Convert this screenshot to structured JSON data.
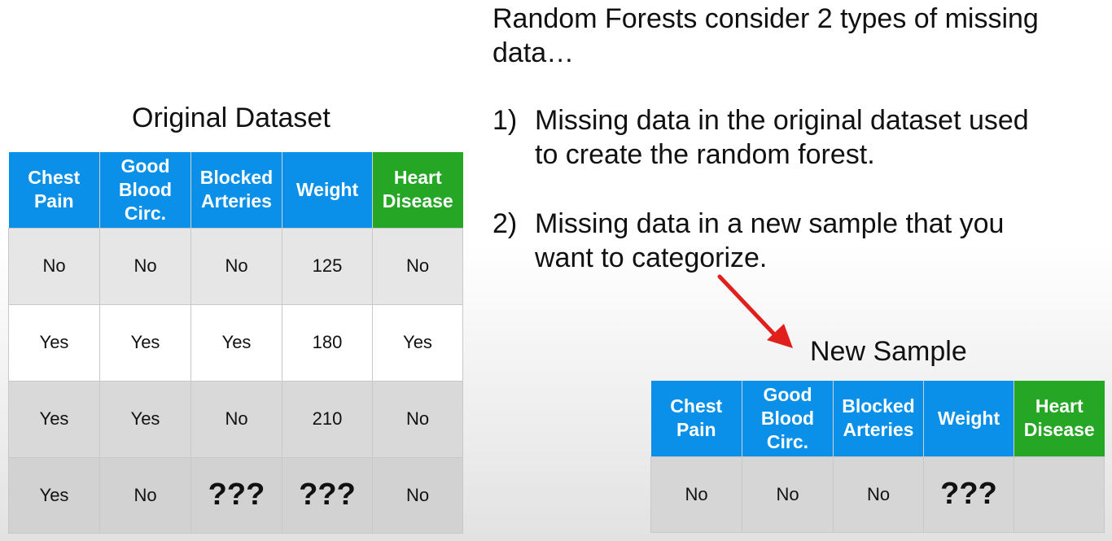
{
  "intro_text": "Random Forests consider 2 types of missing data…",
  "points": [
    {
      "number": "1)",
      "text": "Missing data in the original dataset used to create the random forest."
    },
    {
      "number": "2)",
      "text": "Missing data in a new sample that you want to categorize."
    }
  ],
  "original_dataset": {
    "caption": "Original Dataset",
    "headers": [
      "Chest Pain",
      "Good Blood Circ.",
      "Blocked Arteries",
      "Weight",
      "Heart Disease"
    ],
    "rows": [
      [
        "No",
        "No",
        "No",
        "125",
        "No"
      ],
      [
        "Yes",
        "Yes",
        "Yes",
        "180",
        "Yes"
      ],
      [
        "Yes",
        "Yes",
        "No",
        "210",
        "No"
      ],
      [
        "Yes",
        "No",
        "???",
        "???",
        "No"
      ]
    ]
  },
  "new_sample": {
    "caption": "New Sample",
    "headers": [
      "Chest Pain",
      "Good Blood Circ.",
      "Blocked Arteries",
      "Weight",
      "Heart Disease"
    ],
    "row": [
      "No",
      "No",
      "No",
      "???",
      ""
    ]
  },
  "colors": {
    "header_blue": "#0a90e8",
    "header_green": "#25a725",
    "arrow_red": "#e0201c"
  }
}
